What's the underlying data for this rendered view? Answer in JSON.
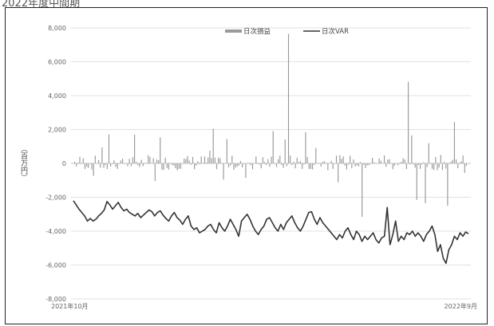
{
  "caption": "2022年度中間期",
  "chart_data": {
    "type": "bar+line",
    "title": "",
    "ylabel": "（百万円）",
    "ylim": [
      -8000,
      8000
    ],
    "yticks": [
      -8000,
      -6000,
      -4000,
      -2000,
      0,
      2000,
      4000,
      6000,
      8000
    ],
    "ytick_labels": [
      "-8,000",
      "-6,000",
      "-4,000",
      "-2,000",
      "0",
      "2,000",
      "4,000",
      "6,000",
      "8,000"
    ],
    "xlim": [
      "2021-10",
      "2022-09"
    ],
    "x_tick_labels": [
      "2021年10月",
      "2022年9月"
    ],
    "grid": "horizontal",
    "legend_position": "top",
    "series": [
      {
        "name": "日次損益",
        "type": "bar",
        "color": "#9a9a9a",
        "spikes": [
          {
            "index": 125,
            "value": 7650
          },
          {
            "index": 195,
            "value": 4820
          },
          {
            "index": 222,
            "value": 2450
          },
          {
            "index": 168,
            "value": -3150
          },
          {
            "index": 200,
            "value": -2150
          },
          {
            "index": 205,
            "value": -2350
          },
          {
            "index": 218,
            "value": -2500
          }
        ]
      },
      {
        "name": "日次VAR",
        "type": "line",
        "color": "#333333",
        "values": [
          -2200,
          -2450,
          -2700,
          -2900,
          -3100,
          -3400,
          -3250,
          -3400,
          -3300,
          -3100,
          -2950,
          -2750,
          -2250,
          -2450,
          -2700,
          -2500,
          -2300,
          -2600,
          -2800,
          -2700,
          -2900,
          -3000,
          -3100,
          -2950,
          -3200,
          -3050,
          -2900,
          -2750,
          -2850,
          -3100,
          -2900,
          -2800,
          -3050,
          -3250,
          -3400,
          -3100,
          -2900,
          -3200,
          -3350,
          -3600,
          -3300,
          -3100,
          -3700,
          -3900,
          -3800,
          -4100,
          -4000,
          -3900,
          -3700,
          -3600,
          -3900,
          -4100,
          -3500,
          -3800,
          -4000,
          -3700,
          -3300,
          -3600,
          -3900,
          -4300,
          -3400,
          -3200,
          -3000,
          -3300,
          -3700,
          -4000,
          -4200,
          -3900,
          -3700,
          -3300,
          -3200,
          -3500,
          -3800,
          -4000,
          -3600,
          -3900,
          -3500,
          -3300,
          -3100,
          -3500,
          -3800,
          -4000,
          -3700,
          -3300,
          -2900,
          -2850,
          -3300,
          -3600,
          -3200,
          -3500,
          -3700,
          -3900,
          -4100,
          -4300,
          -4500,
          -4200,
          -4400,
          -4000,
          -3800,
          -4200,
          -4500,
          -4000,
          -4200,
          -4600,
          -4300,
          -4500,
          -4300,
          -4100,
          -4500,
          -4700,
          -4400,
          -4300,
          -2600,
          -4800,
          -4200,
          -3400,
          -4600,
          -4300,
          -4500,
          -4100,
          -4200,
          -4000,
          -4300,
          -4100,
          -4300,
          -4600,
          -4200,
          -4000,
          -3700,
          -4200,
          -5200,
          -4800,
          -5600,
          -5900,
          -5100,
          -4800,
          -4300,
          -4500,
          -4100,
          -4300,
          -4050,
          -4150
        ]
      }
    ]
  }
}
